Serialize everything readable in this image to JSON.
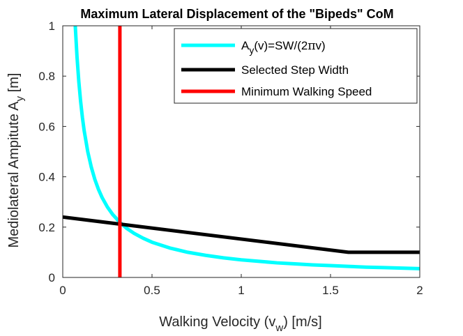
{
  "chart_data": {
    "type": "line",
    "title": "Maximum Lateral Displacement of the \"Bipeds\" CoM",
    "xlabel": {
      "main": "Walking Velocity (v",
      "sub": "w",
      "tail": ") [m/s]"
    },
    "ylabel": {
      "main": "Mediolateral Ampitute A",
      "sub": "y",
      "tail": " [m]"
    },
    "xlim": [
      0,
      2
    ],
    "ylim": [
      0,
      1
    ],
    "xticks": [
      0,
      0.5,
      1,
      1.5,
      2
    ],
    "xtick_labels": [
      "0",
      "0.5",
      "1",
      "1.5",
      "2"
    ],
    "yticks": [
      0,
      0.2,
      0.4,
      0.6,
      0.8,
      1
    ],
    "ytick_labels": [
      "0",
      "0.2",
      "0.4",
      "0.6",
      "0.8",
      "1"
    ],
    "grid": false,
    "legend_position": "top-right",
    "series": [
      {
        "name": "Ay(v)=SW/(2πv)",
        "legend": {
          "pre": "A",
          "sub": "y",
          "post": "(v)=SW/(2",
          "greek": "π",
          "end": "v)"
        },
        "color": "#00FFFF",
        "formula": "SW/(2*pi*v)",
        "x": [
          0.07,
          0.08,
          0.09,
          0.1,
          0.11,
          0.12,
          0.14,
          0.16,
          0.18,
          0.2,
          0.22,
          0.25,
          0.28,
          0.32,
          0.36,
          0.4,
          0.45,
          0.5,
          0.6,
          0.7,
          0.8,
          0.9,
          1.0,
          1.1,
          1.2,
          1.3,
          1.4,
          1.5,
          1.6,
          1.7,
          1.8,
          1.9,
          2.0
        ],
        "y": [
          1.0,
          0.875,
          0.778,
          0.7,
          0.636,
          0.583,
          0.5,
          0.438,
          0.389,
          0.35,
          0.318,
          0.28,
          0.25,
          0.219,
          0.194,
          0.175,
          0.156,
          0.14,
          0.117,
          0.1,
          0.088,
          0.078,
          0.07,
          0.064,
          0.058,
          0.054,
          0.05,
          0.047,
          0.044,
          0.041,
          0.039,
          0.037,
          0.035
        ]
      },
      {
        "name": "Selected Step Width",
        "color": "#000000",
        "x": [
          0,
          1.6,
          2.0
        ],
        "y": [
          0.24,
          0.1,
          0.1
        ]
      },
      {
        "name": "Minimum Walking Speed",
        "color": "#FF0000",
        "x": [
          0.32,
          0.32
        ],
        "y": [
          0,
          1
        ]
      }
    ]
  }
}
